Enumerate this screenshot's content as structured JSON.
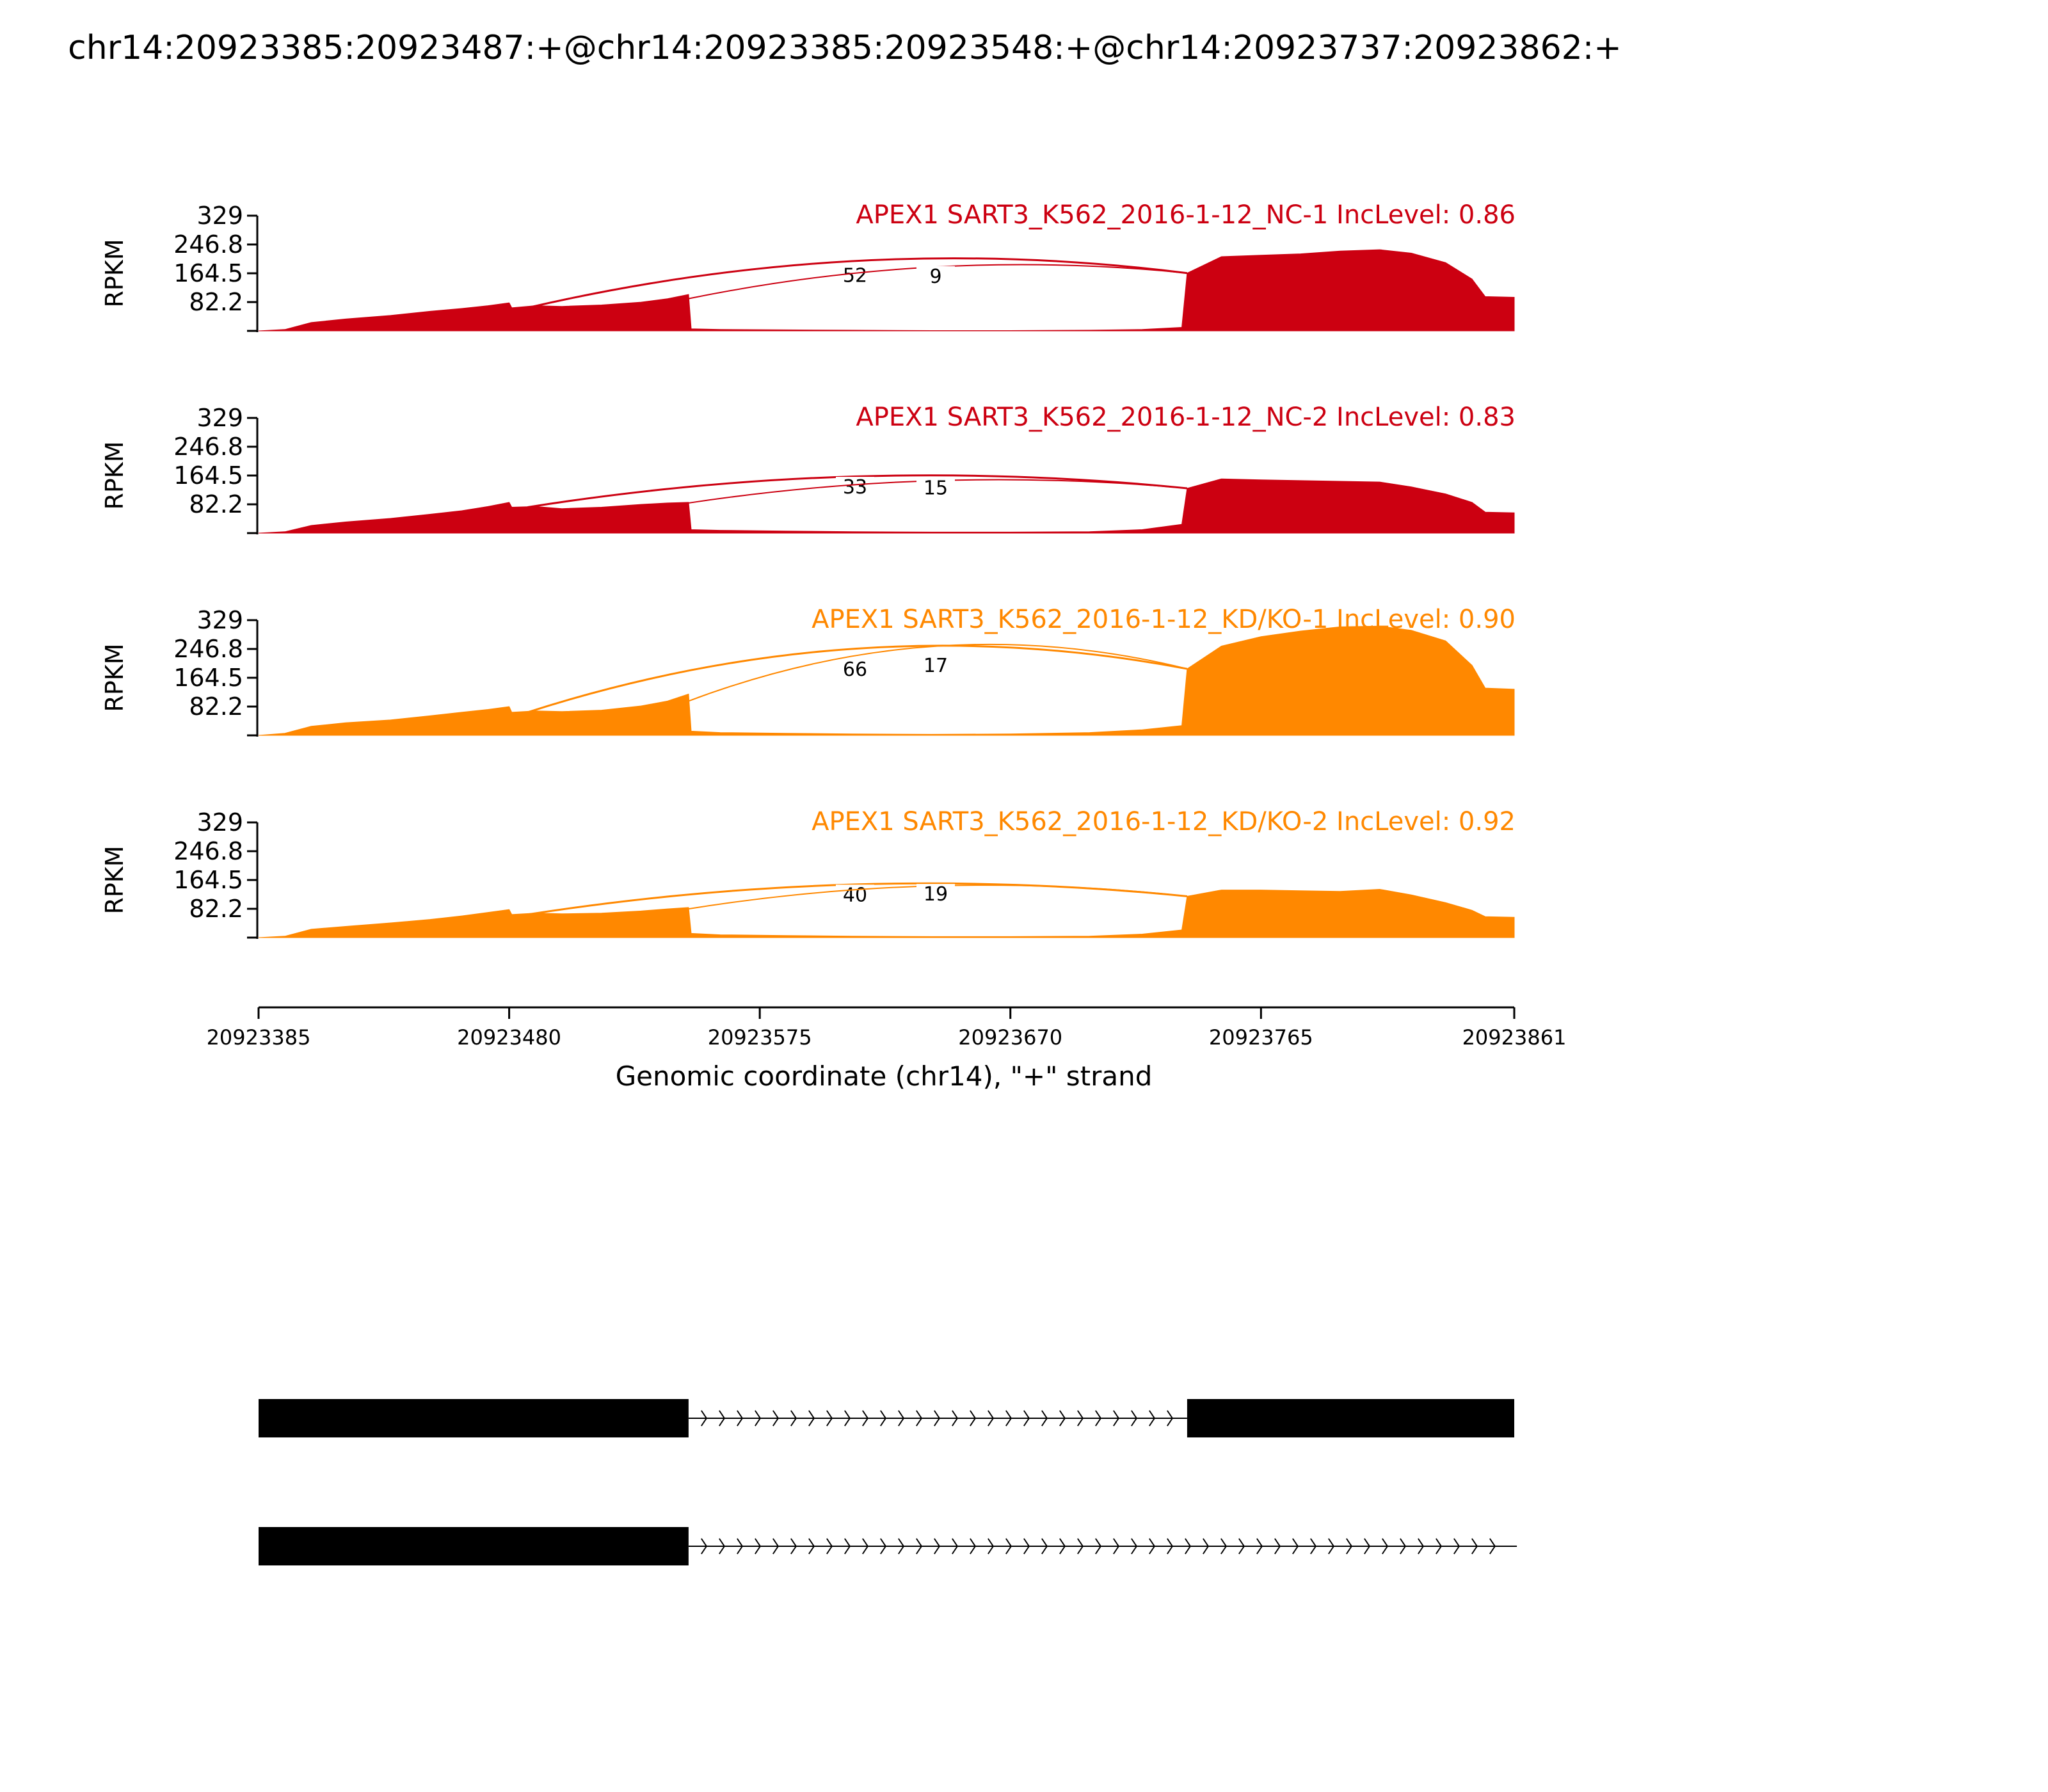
{
  "title": "chr14:20923385:20923487:+@chr14:20923385:20923548:+@chr14:20923737:20923862:+",
  "colors": {
    "nc": "#cc0011",
    "kd": "#ff8800",
    "axis": "#000000",
    "gene": "#000000"
  },
  "chart_data": {
    "type": "area",
    "title": "chr14:20923385:20923487:+@chr14:20923385:20923548:+@chr14:20923737:20923862:+",
    "ylabel": "RPKM",
    "ylim": [
      0,
      329
    ],
    "yticks": [
      "329",
      "246.8",
      "164.5",
      "82.2"
    ],
    "xlabel": "Genomic coordinate (chr14), \"+\" strand",
    "xlim": [
      20923385,
      20923861
    ],
    "xticks": [
      "20923385",
      "20923480",
      "20923575",
      "20923670",
      "20923765",
      "20923861"
    ],
    "coverage_x": [
      20923385,
      20923395,
      20923405,
      20923418,
      20923435,
      20923450,
      20923462,
      20923472,
      20923480,
      20923481,
      20923490,
      20923500,
      20923515,
      20923530,
      20923540,
      20923548,
      20923549,
      20923560,
      20923585,
      20923610,
      20923640,
      20923670,
      20923700,
      20923720,
      20923735,
      20923737,
      20923750,
      20923765,
      20923780,
      20923795,
      20923810,
      20923822,
      20923835,
      20923845,
      20923850,
      20923861
    ],
    "series": [
      {
        "name": "APEX1 SART3_K562_2016-1-12_NC-1 IncLevel: 0.86",
        "group": "nc",
        "values": [
          0,
          4,
          24,
          34,
          44,
          56,
          64,
          72,
          80,
          66,
          72,
          70,
          74,
          82,
          92,
          104,
          6,
          4,
          3,
          2,
          1,
          1,
          2,
          4,
          10,
          165,
          212,
          216,
          220,
          228,
          232,
          222,
          195,
          148,
          98,
          96
        ],
        "junctions": [
          {
            "label": "52",
            "from": 20923487,
            "to": 20923737,
            "peak": 200
          },
          {
            "label": "9",
            "from": 20923548,
            "to": 20923737,
            "peak": 183
          }
        ]
      },
      {
        "name": "APEX1 SART3_K562_2016-1-12_NC-2 IncLevel: 0.83",
        "group": "nc",
        "values": [
          0,
          4,
          22,
          32,
          42,
          54,
          64,
          76,
          88,
          74,
          76,
          70,
          74,
          82,
          86,
          88,
          10,
          8,
          6,
          4,
          3,
          3,
          4,
          10,
          25,
          128,
          155,
          152,
          150,
          148,
          146,
          132,
          112,
          88,
          60,
          58
        ],
        "junctions": [
          {
            "label": "33",
            "from": 20923487,
            "to": 20923737,
            "peak": 162
          },
          {
            "label": "15",
            "from": 20923548,
            "to": 20923737,
            "peak": 150
          }
        ]
      },
      {
        "name": "APEX1 SART3_K562_2016-1-12_KD/KO-1 IncLevel: 0.90",
        "group": "kd",
        "values": [
          0,
          6,
          26,
          36,
          44,
          56,
          66,
          74,
          82,
          66,
          70,
          68,
          72,
          84,
          98,
          118,
          12,
          8,
          6,
          4,
          3,
          4,
          8,
          16,
          28,
          190,
          255,
          282,
          298,
          310,
          312,
          300,
          270,
          200,
          135,
          132
        ],
        "junctions": [
          {
            "label": "66",
            "from": 20923487,
            "to": 20923737,
            "peak": 248
          },
          {
            "label": "17",
            "from": 20923548,
            "to": 20923737,
            "peak": 255
          }
        ]
      },
      {
        "name": "APEX1 SART3_K562_2016-1-12_KD/KO-2 IncLevel: 0.92",
        "group": "kd",
        "values": [
          0,
          4,
          24,
          32,
          42,
          52,
          62,
          72,
          80,
          66,
          70,
          68,
          70,
          76,
          82,
          86,
          12,
          8,
          6,
          4,
          3,
          3,
          4,
          10,
          22,
          118,
          136,
          136,
          134,
          132,
          138,
          122,
          100,
          78,
          60,
          58
        ],
        "junctions": [
          {
            "label": "40",
            "from": 20923487,
            "to": 20923737,
            "peak": 152
          },
          {
            "label": "19",
            "from": 20923548,
            "to": 20923737,
            "peak": 148
          }
        ]
      }
    ],
    "isoforms": [
      {
        "exons": [
          [
            20923385,
            20923548
          ],
          [
            20923737,
            20923862
          ]
        ],
        "intron": [
          20923548,
          20923737
        ]
      },
      {
        "exons": [
          [
            20923385,
            20923548
          ]
        ],
        "intron": [
          20923548,
          20923862
        ]
      }
    ]
  }
}
